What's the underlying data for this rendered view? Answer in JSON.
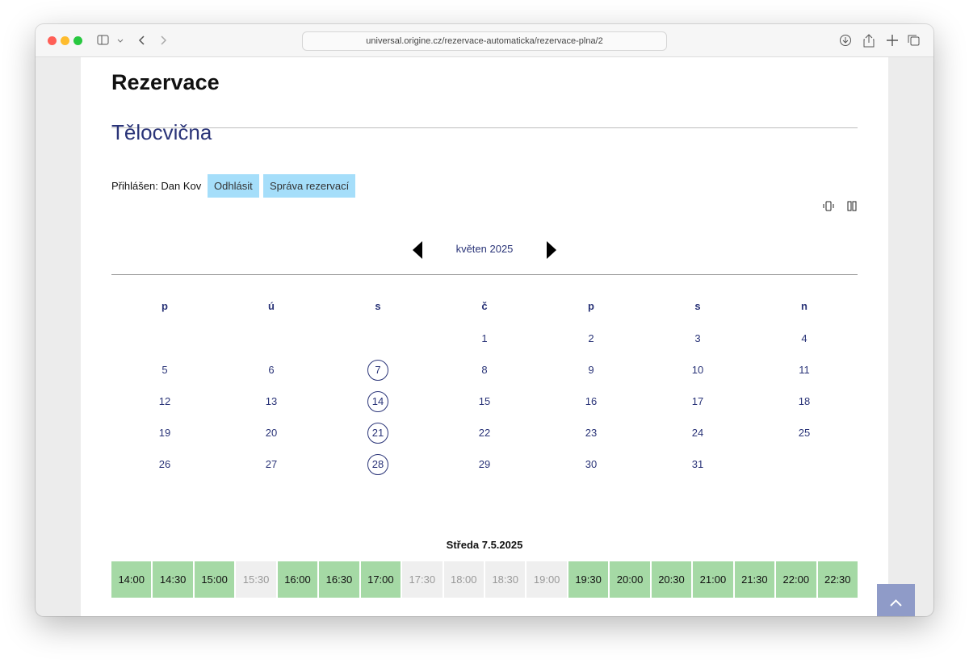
{
  "browser": {
    "url": "universal.origine.cz/rezervace-automaticka/rezervace-plna/2"
  },
  "header": {
    "title": "Rezervace"
  },
  "facility": {
    "name": "Tělocvična"
  },
  "user": {
    "label": "Přihlášen: Dan Kov",
    "buttons": [
      "Odhlásit",
      "Správa rezervací"
    ]
  },
  "calendar": {
    "month": "květen 2025",
    "weekdays": [
      "p",
      "ú",
      "s",
      "č",
      "p",
      "s",
      "n"
    ],
    "weeks": [
      [
        null,
        null,
        null,
        {
          "day": "1"
        },
        {
          "day": "2"
        },
        {
          "day": "3"
        },
        {
          "day": "4"
        }
      ],
      [
        {
          "day": "5"
        },
        {
          "day": "6"
        },
        {
          "day": "7",
          "marked": true
        },
        {
          "day": "8"
        },
        {
          "day": "9"
        },
        {
          "day": "10"
        },
        {
          "day": "11"
        }
      ],
      [
        {
          "day": "12"
        },
        {
          "day": "13"
        },
        {
          "day": "14",
          "marked": true
        },
        {
          "day": "15"
        },
        {
          "day": "16"
        },
        {
          "day": "17"
        },
        {
          "day": "18"
        }
      ],
      [
        {
          "day": "19"
        },
        {
          "day": "20"
        },
        {
          "day": "21",
          "marked": true
        },
        {
          "day": "22"
        },
        {
          "day": "23"
        },
        {
          "day": "24"
        },
        {
          "day": "25"
        }
      ],
      [
        {
          "day": "26"
        },
        {
          "day": "27"
        },
        {
          "day": "28",
          "marked": true
        },
        {
          "day": "29"
        },
        {
          "day": "30"
        },
        {
          "day": "31"
        },
        null
      ]
    ]
  },
  "slots": {
    "date": "Středa 7.5.2025",
    "items": [
      {
        "time": "14:00",
        "available": true
      },
      {
        "time": "14:30",
        "available": true
      },
      {
        "time": "15:00",
        "available": true
      },
      {
        "time": "15:30",
        "available": false
      },
      {
        "time": "16:00",
        "available": true
      },
      {
        "time": "16:30",
        "available": true
      },
      {
        "time": "17:00",
        "available": true
      },
      {
        "time": "17:30",
        "available": false
      },
      {
        "time": "18:00",
        "available": false
      },
      {
        "time": "18:30",
        "available": false
      },
      {
        "time": "19:00",
        "available": false
      },
      {
        "time": "19:30",
        "available": true
      },
      {
        "time": "20:00",
        "available": true
      },
      {
        "time": "20:30",
        "available": true
      },
      {
        "time": "21:00",
        "available": true
      },
      {
        "time": "21:30",
        "available": true
      },
      {
        "time": "22:00",
        "available": true
      },
      {
        "time": "22:30",
        "available": true
      }
    ]
  }
}
